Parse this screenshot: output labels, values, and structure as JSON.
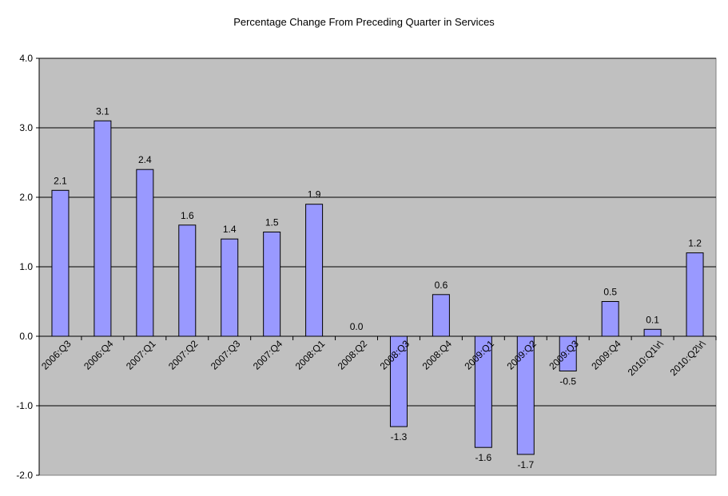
{
  "chart_data": {
    "type": "bar",
    "title": "Percentage Change From Preceding Quarter in Services",
    "xlabel": "",
    "ylabel": "",
    "ylim": [
      -2.0,
      4.0
    ],
    "yticks": [
      "4.0",
      "3.0",
      "2.0",
      "1.0",
      "0.0",
      "-1.0",
      "-2.0"
    ],
    "ytick_values": [
      4.0,
      3.0,
      2.0,
      1.0,
      0.0,
      -1.0,
      -2.0
    ],
    "grid": true,
    "legend": "none",
    "categories": [
      "2006:Q3",
      "2006:Q4",
      "2007:Q1",
      "2007:Q2",
      "2007:Q3",
      "2007:Q4",
      "2008:Q1",
      "2008:Q2",
      "2008:Q3",
      "2008:Q4",
      "2009:Q1",
      "2009:Q2",
      "2009:Q3",
      "2009:Q4",
      "2010:Q1\\r\\",
      "2010:Q2\\r\\"
    ],
    "values": [
      2.1,
      3.1,
      2.4,
      1.6,
      1.4,
      1.5,
      1.9,
      0.0,
      -1.3,
      0.6,
      -1.6,
      -1.7,
      -0.5,
      0.5,
      0.1,
      1.2
    ],
    "data_labels": [
      "2.1",
      "3.1",
      "2.4",
      "1.6",
      "1.4",
      "1.5",
      "1.9",
      "0.0",
      "-1.3",
      "0.6",
      "-1.6",
      "-1.7",
      "-0.5",
      "0.5",
      "0.1",
      "1.2"
    ],
    "colors": {
      "plot_background": "#c0c0c0",
      "bar_fill": "#9999ff",
      "bar_stroke": "#000000",
      "gridline": "#000000"
    }
  }
}
